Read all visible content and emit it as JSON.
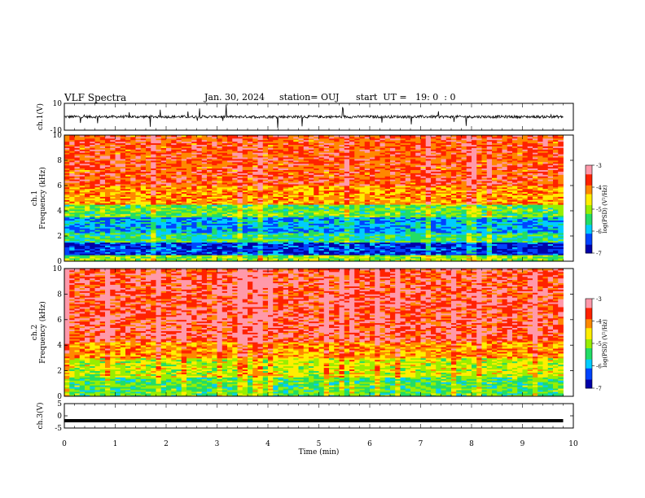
{
  "header": {
    "title": "VLF Spectra",
    "date": "Jan. 30, 2024",
    "station": "station= OUJ",
    "start": "start  UT =   19: 0  : 0"
  },
  "chart_data": [
    {
      "type": "line",
      "id": "ch1_waveform",
      "ylabel": "ch.1(V)",
      "ylim": [
        -10,
        10
      ],
      "yticks": [
        "10",
        "-10"
      ],
      "baseline": 0,
      "noise_amplitude": 2,
      "xlim": [
        0,
        10
      ],
      "data_end": 9.8
    },
    {
      "type": "heatmap",
      "id": "ch1_spectrogram",
      "ylabel": "ch.1",
      "ylabel2": "Frequency  (kHz)",
      "ylim": [
        0,
        10
      ],
      "yticks": [
        "0",
        "2",
        "4",
        "6",
        "8",
        "10"
      ],
      "xlim": [
        0,
        10
      ],
      "data_end": 9.8,
      "colorbar": {
        "label": "log(PSD) (V²/Hz)",
        "range": [
          -7,
          -3
        ],
        "ticks": [
          "-3",
          "-4",
          "-5",
          "-6",
          "-7"
        ]
      },
      "bands": [
        {
          "from": 0,
          "to": 0.5,
          "value": -5.0
        },
        {
          "from": 0.5,
          "to": 1.5,
          "value": -6.5
        },
        {
          "from": 1.5,
          "to": 2.2,
          "value": -5.5
        },
        {
          "from": 2.2,
          "to": 3.5,
          "value": -6.0
        },
        {
          "from": 3.5,
          "to": 4.5,
          "value": -5.2
        },
        {
          "from": 4.5,
          "to": 6.0,
          "value": -4.2
        },
        {
          "from": 6.0,
          "to": 10,
          "value": -3.8
        }
      ]
    },
    {
      "type": "heatmap",
      "id": "ch2_spectrogram",
      "ylabel": "ch.2",
      "ylabel2": "Frequency  (kHz)",
      "ylim": [
        0,
        10
      ],
      "yticks": [
        "0",
        "2",
        "4",
        "6",
        "8",
        "10"
      ],
      "xlim": [
        0,
        10
      ],
      "data_end": 9.8,
      "colorbar": {
        "label": "log(PSD) (V²/Hz)",
        "range": [
          -7,
          -3
        ],
        "ticks": [
          "-3",
          "-4",
          "-5",
          "-6",
          "-7"
        ]
      },
      "bands": [
        {
          "from": 0,
          "to": 1.5,
          "value": -5.3
        },
        {
          "from": 1.5,
          "to": 3.0,
          "value": -4.8
        },
        {
          "from": 3.0,
          "to": 4.2,
          "value": -4.2
        },
        {
          "from": 4.2,
          "to": 10,
          "value": -3.6
        }
      ]
    },
    {
      "type": "line",
      "id": "ch3_waveform",
      "ylabel": "ch.3(V)",
      "ylim": [
        -5,
        5
      ],
      "yticks": [
        "5",
        "0",
        "-5"
      ],
      "baseline": -2,
      "noise_amplitude": 0,
      "xlim": [
        0,
        10
      ],
      "data_end": 9.8
    }
  ],
  "xaxis": {
    "label": "Time  (min)",
    "ticks": [
      "0",
      "1",
      "2",
      "3",
      "4",
      "5",
      "6",
      "7",
      "8",
      "9",
      "10"
    ]
  },
  "colormap": [
    "#0000aa",
    "#0044ff",
    "#00ccff",
    "#22dd66",
    "#99ee00",
    "#ffee00",
    "#ff8800",
    "#ff2200",
    "#ff99aa"
  ]
}
